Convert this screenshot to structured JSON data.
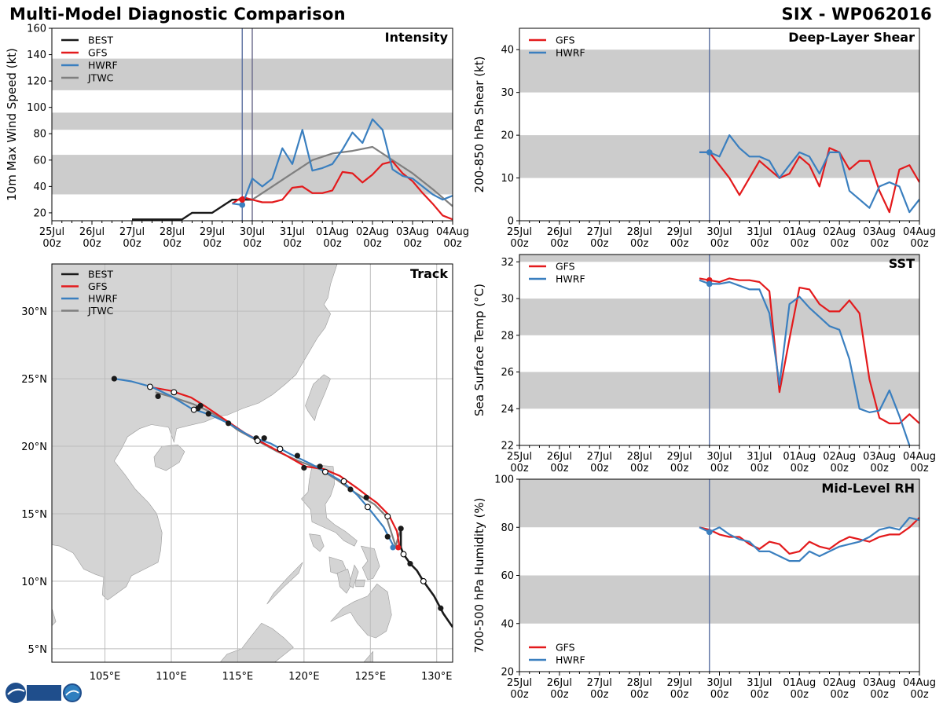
{
  "header": {
    "title": "Multi-Model Diagnostic Comparison",
    "storm_id": "SIX - WP062016"
  },
  "colors": {
    "BEST": "#1a1a1a",
    "GFS": "#e31a1c",
    "HWRF": "#3a7fbf",
    "JTWC": "#7f7f7f",
    "band": "#cccccc",
    "land": "#d4d4d4",
    "grid": "#bdbdbd",
    "vline": "#5a6fa0"
  },
  "time_axis": {
    "ticks": [
      {
        "day": 0,
        "date": "25Jul",
        "hour": "00z"
      },
      {
        "day": 1,
        "date": "26Jul",
        "hour": "00z"
      },
      {
        "day": 2,
        "date": "27Jul",
        "hour": "00z"
      },
      {
        "day": 3,
        "date": "28Jul",
        "hour": "00z"
      },
      {
        "day": 4,
        "date": "29Jul",
        "hour": "00z"
      },
      {
        "day": 5,
        "date": "30Jul",
        "hour": "00z"
      },
      {
        "day": 6,
        "date": "31Jul",
        "hour": "00z"
      },
      {
        "day": 7,
        "date": "01Aug",
        "hour": "00z"
      },
      {
        "day": 8,
        "date": "02Aug",
        "hour": "00z"
      },
      {
        "day": 9,
        "date": "03Aug",
        "hour": "00z"
      },
      {
        "day": 10,
        "date": "04Aug",
        "hour": "00z"
      }
    ],
    "init_day": 4.75,
    "current_day": 5.0
  },
  "chart_data": [
    {
      "id": "intensity",
      "type": "line",
      "title": "Intensity",
      "ylabel": "10m Max Wind Speed (kt)",
      "ylim": [
        14,
        160
      ],
      "yticks": [
        20,
        40,
        60,
        80,
        100,
        120,
        140,
        160
      ],
      "bands": [
        [
          34,
          64
        ],
        [
          83,
          96
        ],
        [
          113,
          137
        ]
      ],
      "legend": [
        "BEST",
        "GFS",
        "HWRF",
        "JTWC"
      ],
      "series": [
        {
          "name": "BEST",
          "x": [
            2.0,
            2.25,
            2.5,
            2.75,
            3.0,
            3.25,
            3.5,
            3.75,
            4.0,
            4.25,
            4.5,
            4.75,
            5.0
          ],
          "values": [
            15,
            15,
            15,
            15,
            15,
            15,
            20,
            20,
            20,
            25,
            30,
            30,
            30
          ]
        },
        {
          "name": "GFS",
          "x": [
            4.5,
            4.75,
            5.0,
            5.25,
            5.5,
            5.75,
            6.0,
            6.25,
            6.5,
            6.75,
            7.0,
            7.25,
            7.5,
            7.75,
            8.0,
            8.25,
            8.5,
            8.75,
            9.0,
            9.25,
            9.5,
            9.75,
            10.0
          ],
          "values": [
            27,
            32,
            30,
            28,
            28,
            30,
            39,
            40,
            35,
            35,
            37,
            51,
            50,
            43,
            49,
            57,
            59,
            50,
            44,
            35,
            27,
            18,
            15
          ]
        },
        {
          "name": "HWRF",
          "x": [
            4.5,
            4.75,
            5.0,
            5.25,
            5.5,
            5.75,
            6.0,
            6.25,
            6.5,
            6.75,
            7.0,
            7.25,
            7.5,
            7.75,
            8.0,
            8.25,
            8.5,
            8.75,
            9.0,
            9.25,
            9.5,
            9.75,
            10.0
          ],
          "values": [
            27,
            26,
            46,
            40,
            46,
            69,
            57,
            83,
            52,
            54,
            57,
            68,
            81,
            73,
            91,
            83,
            53,
            48,
            46,
            40,
            34,
            30,
            33
          ]
        },
        {
          "name": "JTWC",
          "x": [
            5.0,
            5.5,
            6.0,
            6.5,
            7.0,
            7.5,
            8.0,
            8.5,
            9.0,
            9.5,
            10.0
          ],
          "values": [
            30,
            40,
            50,
            60,
            65,
            67,
            70,
            60,
            50,
            38,
            25
          ]
        }
      ],
      "init_points": [
        {
          "name": "HWRF",
          "value": 26
        },
        {
          "name": "GFS",
          "value": 30
        }
      ]
    },
    {
      "id": "shear",
      "type": "line",
      "title": "Deep-Layer Shear",
      "ylabel": "200-850 hPa Shear (kt)",
      "ylim": [
        0,
        45
      ],
      "yticks": [
        0,
        10,
        20,
        30,
        40
      ],
      "bands": [
        [
          10,
          20
        ],
        [
          30,
          40
        ]
      ],
      "legend": [
        "GFS",
        "HWRF"
      ],
      "series": [
        {
          "name": "GFS",
          "x": [
            4.5,
            4.75,
            5.0,
            5.25,
            5.5,
            5.75,
            6.0,
            6.25,
            6.5,
            6.75,
            7.0,
            7.25,
            7.5,
            7.75,
            8.0,
            8.25,
            8.5,
            8.75,
            9.0,
            9.25,
            9.5,
            9.75,
            10.0
          ],
          "values": [
            16,
            16,
            13,
            10,
            6,
            10,
            14,
            12,
            10,
            11,
            15,
            13,
            8,
            17,
            16,
            12,
            14,
            14,
            7,
            2,
            12,
            13,
            9
          ]
        },
        {
          "name": "HWRF",
          "x": [
            4.5,
            4.75,
            5.0,
            5.25,
            5.5,
            5.75,
            6.0,
            6.25,
            6.5,
            6.75,
            7.0,
            7.25,
            7.5,
            7.75,
            8.0,
            8.25,
            8.5,
            8.75,
            9.0,
            9.25,
            9.5,
            9.75,
            10.0
          ],
          "values": [
            16,
            16,
            15,
            20,
            17,
            15,
            15,
            14,
            10,
            13,
            16,
            15,
            11,
            16,
            16,
            7,
            5,
            3,
            8,
            9,
            8,
            2,
            5
          ]
        }
      ],
      "init_points": [
        {
          "name": "HWRF",
          "value": 16
        }
      ]
    },
    {
      "id": "sst",
      "type": "line",
      "title": "SST",
      "ylabel": "Sea Surface Temp (°C)",
      "ylim": [
        22,
        32.4
      ],
      "yticks": [
        22,
        24,
        26,
        28,
        30,
        32
      ],
      "bands": [
        [
          24,
          26
        ],
        [
          28,
          30
        ],
        [
          32,
          32.4
        ]
      ],
      "legend": [
        "GFS",
        "HWRF"
      ],
      "series": [
        {
          "name": "GFS",
          "x": [
            4.5,
            4.75,
            5.0,
            5.25,
            5.5,
            5.75,
            6.0,
            6.25,
            6.5,
            6.75,
            7.0,
            7.25,
            7.5,
            7.75,
            8.0,
            8.25,
            8.5,
            8.75,
            9.0,
            9.25,
            9.5,
            9.75,
            10.0
          ],
          "values": [
            31.1,
            31.0,
            30.9,
            31.1,
            31.0,
            31.0,
            30.9,
            30.4,
            24.9,
            27.8,
            30.6,
            30.5,
            29.7,
            29.3,
            29.3,
            29.9,
            29.2,
            25.6,
            23.5,
            23.2,
            23.2,
            23.7,
            23.2
          ]
        },
        {
          "name": "HWRF",
          "x": [
            4.5,
            4.75,
            5.0,
            5.25,
            5.5,
            5.75,
            6.0,
            6.25,
            6.5,
            6.75,
            7.0,
            7.25,
            7.5,
            7.75,
            8.0,
            8.25,
            8.5,
            8.75,
            9.0,
            9.25,
            9.5,
            9.75
          ],
          "values": [
            31.0,
            30.8,
            30.8,
            30.9,
            30.7,
            30.5,
            30.5,
            29.2,
            25.3,
            29.7,
            30.1,
            29.5,
            29.0,
            28.5,
            28.3,
            26.7,
            24.0,
            23.8,
            23.9,
            25.0,
            23.6,
            22.0
          ]
        }
      ],
      "init_points": [
        {
          "name": "GFS",
          "value": 31.0
        },
        {
          "name": "HWRF",
          "value": 30.8
        }
      ]
    },
    {
      "id": "rh",
      "type": "line",
      "title": "Mid-Level RH",
      "ylabel": "700-500 hPa Humidity (%)",
      "ylim": [
        20,
        100
      ],
      "yticks": [
        20,
        40,
        60,
        80,
        100
      ],
      "bands": [
        [
          40,
          60
        ],
        [
          80,
          100
        ]
      ],
      "legend": [
        "GFS",
        "HWRF"
      ],
      "series": [
        {
          "name": "GFS",
          "x": [
            4.5,
            4.75,
            5.0,
            5.25,
            5.5,
            5.75,
            6.0,
            6.25,
            6.5,
            6.75,
            7.0,
            7.25,
            7.5,
            7.75,
            8.0,
            8.25,
            8.5,
            8.75,
            9.0,
            9.25,
            9.5,
            9.75,
            10.0
          ],
          "values": [
            80,
            79,
            77,
            76,
            76,
            73,
            71,
            74,
            73,
            69,
            70,
            74,
            72,
            71,
            74,
            76,
            75,
            74,
            76,
            77,
            77,
            80,
            84
          ]
        },
        {
          "name": "HWRF",
          "x": [
            4.5,
            4.75,
            5.0,
            5.25,
            5.5,
            5.75,
            6.0,
            6.25,
            6.5,
            6.75,
            7.0,
            7.25,
            7.5,
            7.75,
            8.0,
            8.25,
            8.5,
            8.75,
            9.0,
            9.25,
            9.5,
            9.75,
            10.0
          ],
          "values": [
            80,
            78,
            80,
            77,
            75,
            74,
            70,
            70,
            68,
            66,
            66,
            70,
            68,
            70,
            72,
            73,
            74,
            76,
            79,
            80,
            79,
            84,
            83
          ]
        }
      ],
      "init_points": [
        {
          "name": "HWRF",
          "value": 78
        }
      ]
    },
    {
      "id": "track",
      "type": "line",
      "title": "Track",
      "xlim": [
        101.0,
        131.2
      ],
      "ylim": [
        4.0,
        33.5
      ],
      "xticks": [
        {
          "v": 105,
          "label": "105°E"
        },
        {
          "v": 110,
          "label": "110°E"
        },
        {
          "v": 115,
          "label": "115°E"
        },
        {
          "v": 120,
          "label": "120°E"
        },
        {
          "v": 125,
          "label": "125°E"
        },
        {
          "v": 130,
          "label": "130°E"
        }
      ],
      "yticks": [
        {
          "v": 5,
          "label": "5°N"
        },
        {
          "v": 10,
          "label": "10°N"
        },
        {
          "v": 15,
          "label": "15°N"
        },
        {
          "v": 20,
          "label": "20°N"
        },
        {
          "v": 25,
          "label": "25°N"
        },
        {
          "v": 30,
          "label": "30°N"
        }
      ],
      "legend": [
        "BEST",
        "GFS",
        "HWRF",
        "JTWC"
      ],
      "series": [
        {
          "name": "BEST",
          "lon": [
            131.2,
            130.5,
            129.8,
            129.0,
            128.5,
            128.0,
            127.5,
            127.3,
            127.3
          ],
          "lat": [
            6.6,
            7.6,
            8.9,
            10.0,
            10.8,
            11.3,
            12.0,
            12.5,
            13.9
          ]
        },
        {
          "name": "GFS",
          "lon": [
            127.2,
            127.0,
            126.4,
            125.5,
            124.8,
            124.0,
            122.7,
            121.5,
            120.1,
            118.5,
            117.0,
            115.5,
            114.3,
            112.5,
            111.5,
            110.0,
            108.3
          ],
          "lat": [
            12.5,
            13.7,
            14.9,
            15.8,
            16.3,
            16.9,
            17.8,
            18.3,
            18.5,
            19.4,
            20.2,
            21.0,
            21.8,
            23.0,
            23.6,
            24.1,
            24.4
          ]
        },
        {
          "name": "HWRF",
          "lon": [
            126.8,
            126.0,
            125.2,
            124.7,
            124.0,
            123.0,
            121.8,
            120.5,
            119.0,
            117.5,
            116.0,
            114.3,
            113.0,
            111.5,
            110.0,
            108.5,
            107.0,
            105.7
          ],
          "lat": [
            12.5,
            14.0,
            15.0,
            15.6,
            16.4,
            17.3,
            18.0,
            18.7,
            19.4,
            20.2,
            20.7,
            21.7,
            22.3,
            22.8,
            23.7,
            24.4,
            24.8,
            25.0
          ]
        },
        {
          "name": "JTWC",
          "lon": [
            127.3,
            126.9,
            126.2,
            125.3,
            124.6,
            123.8,
            122.5,
            121.2,
            119.6,
            118.0,
            116.5,
            115.0,
            114.2,
            112.8,
            111.7,
            110.2,
            108.8
          ],
          "lat": [
            13.9,
            12.6,
            14.8,
            15.7,
            16.1,
            16.6,
            17.5,
            18.3,
            18.9,
            19.6,
            20.4,
            21.2,
            21.8,
            22.6,
            23.1,
            23.6,
            24.0
          ]
        }
      ],
      "markers": [
        {
          "name": "BEST",
          "open": false,
          "lon": [
            130.3,
            128.0,
            127.3,
            126.3,
            124.7,
            123.5,
            120.0,
            121.2,
            117.0,
            114.3,
            112.8,
            112.2,
            109.0,
            105.7,
            119.5,
            116.4,
            112.0
          ],
          "lat": [
            8.0,
            11.3,
            13.9,
            13.3,
            16.2,
            16.8,
            18.4,
            18.5,
            20.6,
            21.7,
            22.4,
            23.0,
            23.7,
            25.0,
            19.3,
            20.6,
            22.8
          ]
        },
        {
          "name": "BEST",
          "open": true,
          "lon": [
            129.0,
            127.5,
            126.3,
            124.8,
            123.0,
            121.6,
            118.2,
            116.5,
            111.7,
            110.2,
            108.4
          ],
          "lat": [
            10.0,
            12.0,
            14.8,
            15.5,
            17.4,
            18.1,
            19.8,
            20.4,
            22.7,
            24.0,
            24.4
          ]
        },
        {
          "name": "GFS",
          "open": false,
          "lon": [
            127.1
          ],
          "lat": [
            12.5
          ]
        },
        {
          "name": "HWRF",
          "open": false,
          "lon": [
            126.7
          ],
          "lat": [
            12.5
          ]
        }
      ]
    }
  ]
}
